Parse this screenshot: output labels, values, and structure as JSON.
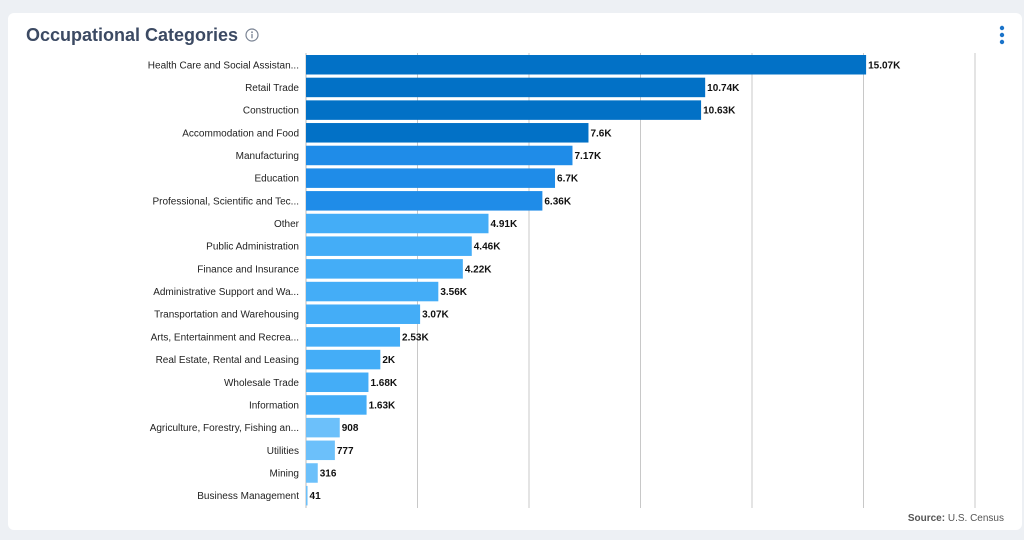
{
  "title": "Occupational Categories",
  "source_label": "Source:",
  "source_value": "U.S. Census",
  "icons": {
    "info": "info-circle-icon",
    "menu": "more-vert-icon"
  },
  "colors": {
    "bar_dark": "#0271c6",
    "bar_mid": "#1f8ce8",
    "bar_light": "#44adf7",
    "bar_lightest": "#6cc0fa",
    "grid": "#c8c8c8",
    "title": "#3c4a63"
  },
  "chart_data": {
    "type": "bar",
    "orientation": "horizontal",
    "xlim": [
      0,
      18000
    ],
    "grid": true,
    "categories": [
      "Health Care and Social Assistan...",
      "Retail Trade",
      "Construction",
      "Accommodation and Food",
      "Manufacturing",
      "Education",
      "Professional, Scientific and Tec...",
      "Other",
      "Public Administration",
      "Finance and Insurance",
      "Administrative Support and Wa...",
      "Transportation and Warehousing",
      "Arts, Entertainment and Recrea...",
      "Real Estate, Rental and Leasing",
      "Wholesale Trade",
      "Information",
      "Agriculture, Forestry, Fishing an...",
      "Utilities",
      "Mining",
      "Business Management"
    ],
    "values": [
      15070,
      10740,
      10630,
      7600,
      7170,
      6700,
      6360,
      4910,
      4460,
      4220,
      3560,
      3070,
      2530,
      2000,
      1680,
      1630,
      908,
      777,
      316,
      41
    ],
    "value_labels": [
      "15.07K",
      "10.74K",
      "10.63K",
      "7.6K",
      "7.17K",
      "6.7K",
      "6.36K",
      "4.91K",
      "4.46K",
      "4.22K",
      "3.56K",
      "3.07K",
      "2.53K",
      "2K",
      "1.68K",
      "1.63K",
      "908",
      "777",
      "316",
      "41"
    ]
  }
}
